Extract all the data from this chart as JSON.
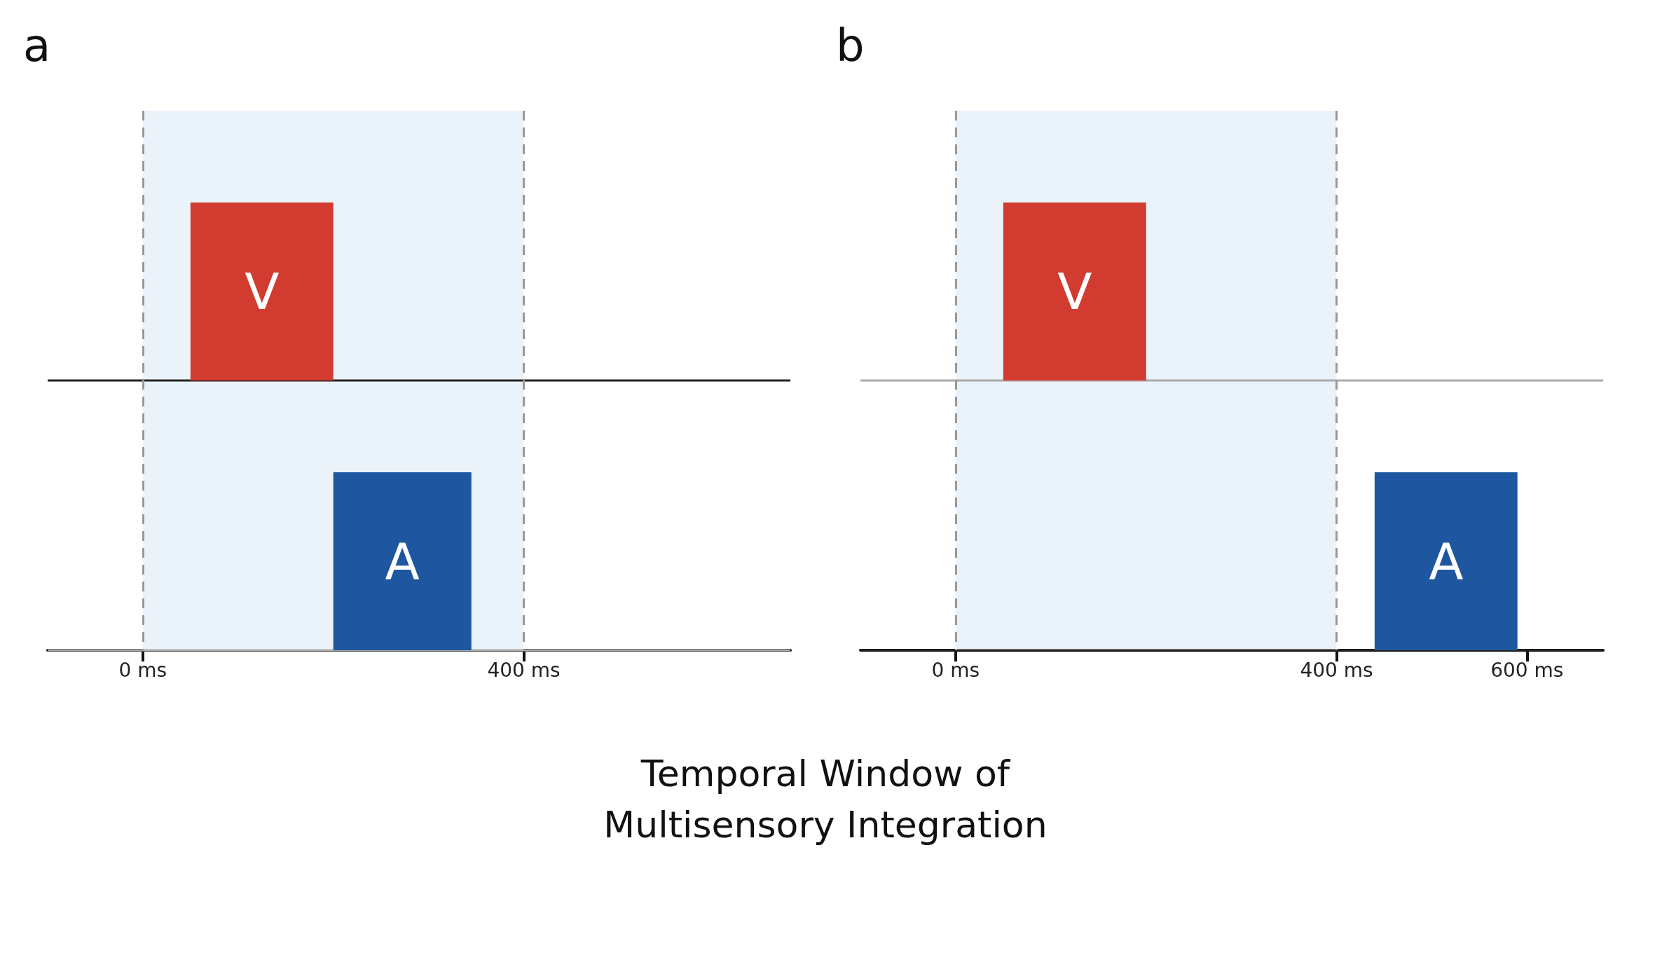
{
  "chart_data": [
    {
      "type": "bar",
      "title": "a",
      "orientation": "horizontal",
      "categories": [
        "V",
        "A"
      ],
      "base": [
        50,
        200
      ],
      "values": [
        150,
        145
      ],
      "colors": [
        "#d13b30",
        "#1f56a0"
      ],
      "xlim": [
        -100,
        680
      ],
      "xticks": [
        {
          "value": 0,
          "label": "0 ms"
        },
        {
          "value": 400,
          "label": "400 ms"
        }
      ],
      "tick_labels": "x",
      "bands": [
        {
          "axis": "x",
          "from": 0,
          "to": 400,
          "color": "#eaf2fa"
        }
      ],
      "ref_lines": [
        {
          "axis": "x",
          "value": 0,
          "line_style": "dashed",
          "color": "#999999"
        },
        {
          "axis": "x",
          "value": 400,
          "line_style": "dashed",
          "color": "#999999"
        },
        {
          "axis": "y",
          "value": "V",
          "color": "#222222"
        },
        {
          "axis": "y",
          "value": "A",
          "color": "#aaaaaa"
        }
      ],
      "annotations": [
        "Temporal Window of Multisensory Integration"
      ]
    },
    {
      "type": "bar",
      "title": "b",
      "orientation": "horizontal",
      "categories": [
        "V",
        "A"
      ],
      "base": [
        50,
        440
      ],
      "values": [
        150,
        150
      ],
      "colors": [
        "#d13b30",
        "#1f56a0"
      ],
      "xlim": [
        -100,
        680
      ],
      "xticks": [
        {
          "value": 0,
          "label": "0 ms"
        },
        {
          "value": 400,
          "label": "400 ms"
        },
        {
          "value": 600,
          "label": "600 ms"
        }
      ],
      "tick_labels": "x",
      "bands": [
        {
          "axis": "x",
          "from": 0,
          "to": 400,
          "color": "#eaf2fa"
        }
      ],
      "ref_lines": [
        {
          "axis": "x",
          "value": 0,
          "line_style": "dashed",
          "color": "#999999"
        },
        {
          "axis": "x",
          "value": 400,
          "line_style": "dashed",
          "color": "#999999"
        },
        {
          "axis": "y",
          "value": "V",
          "color": "#aaaaaa"
        },
        {
          "axis": "y",
          "value": "A",
          "color": "#222222"
        }
      ]
    }
  ]
}
